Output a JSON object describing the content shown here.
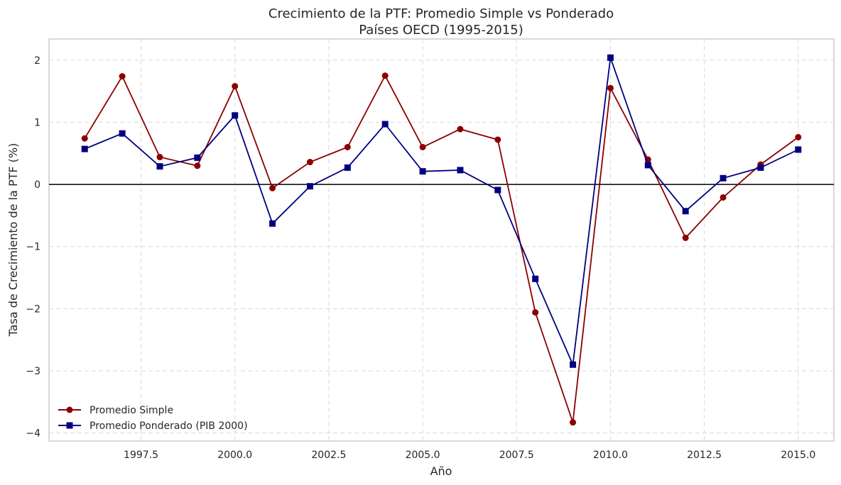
{
  "chart_data": {
    "type": "line",
    "title": "Crecimiento de la PTF: Promedio Simple vs Ponderado",
    "subtitle": "Países OECD (1995-2015)",
    "xlabel": "Año",
    "ylabel": "Tasa de Crecimiento de la PTF (%)",
    "xlim": [
      1995.05,
      2015.95
    ],
    "ylim": [
      -4.13,
      2.34
    ],
    "x_ticks": [
      1997.5,
      2000.0,
      2002.5,
      2005.0,
      2007.5,
      2010.0,
      2012.5,
      2015.0
    ],
    "x_tick_labels": [
      "1997.5",
      "2000.0",
      "2002.5",
      "2005.0",
      "2007.5",
      "2010.0",
      "2012.5",
      "2015.0"
    ],
    "y_ticks": [
      -4,
      -3,
      -2,
      -1,
      0,
      1,
      2
    ],
    "y_tick_labels": [
      "−4",
      "−3",
      "−2",
      "−1",
      "0",
      "1",
      "2"
    ],
    "grid": true,
    "zero_line": true,
    "legend_position": "lower-left",
    "x": [
      1996,
      1997,
      1998,
      1999,
      2000,
      2001,
      2002,
      2003,
      2004,
      2005,
      2006,
      2007,
      2008,
      2009,
      2010,
      2011,
      2012,
      2013,
      2014,
      2015
    ],
    "series": [
      {
        "name": "Promedio Simple",
        "color": "#8b0000",
        "marker": "circle",
        "values": [
          0.74,
          1.74,
          0.44,
          0.3,
          1.58,
          -0.06,
          0.36,
          0.6,
          1.75,
          0.6,
          0.89,
          0.72,
          -2.06,
          -3.83,
          1.55,
          0.4,
          -0.86,
          -0.21,
          0.32,
          0.76
        ]
      },
      {
        "name": "Promedio Ponderado (PIB 2000)",
        "color": "#000080",
        "marker": "square",
        "values": [
          0.57,
          0.82,
          0.29,
          0.43,
          1.11,
          -0.63,
          -0.03,
          0.27,
          0.97,
          0.21,
          0.23,
          -0.09,
          -1.52,
          -2.9,
          2.04,
          0.31,
          -0.43,
          0.1,
          0.27,
          0.56
        ]
      }
    ]
  }
}
